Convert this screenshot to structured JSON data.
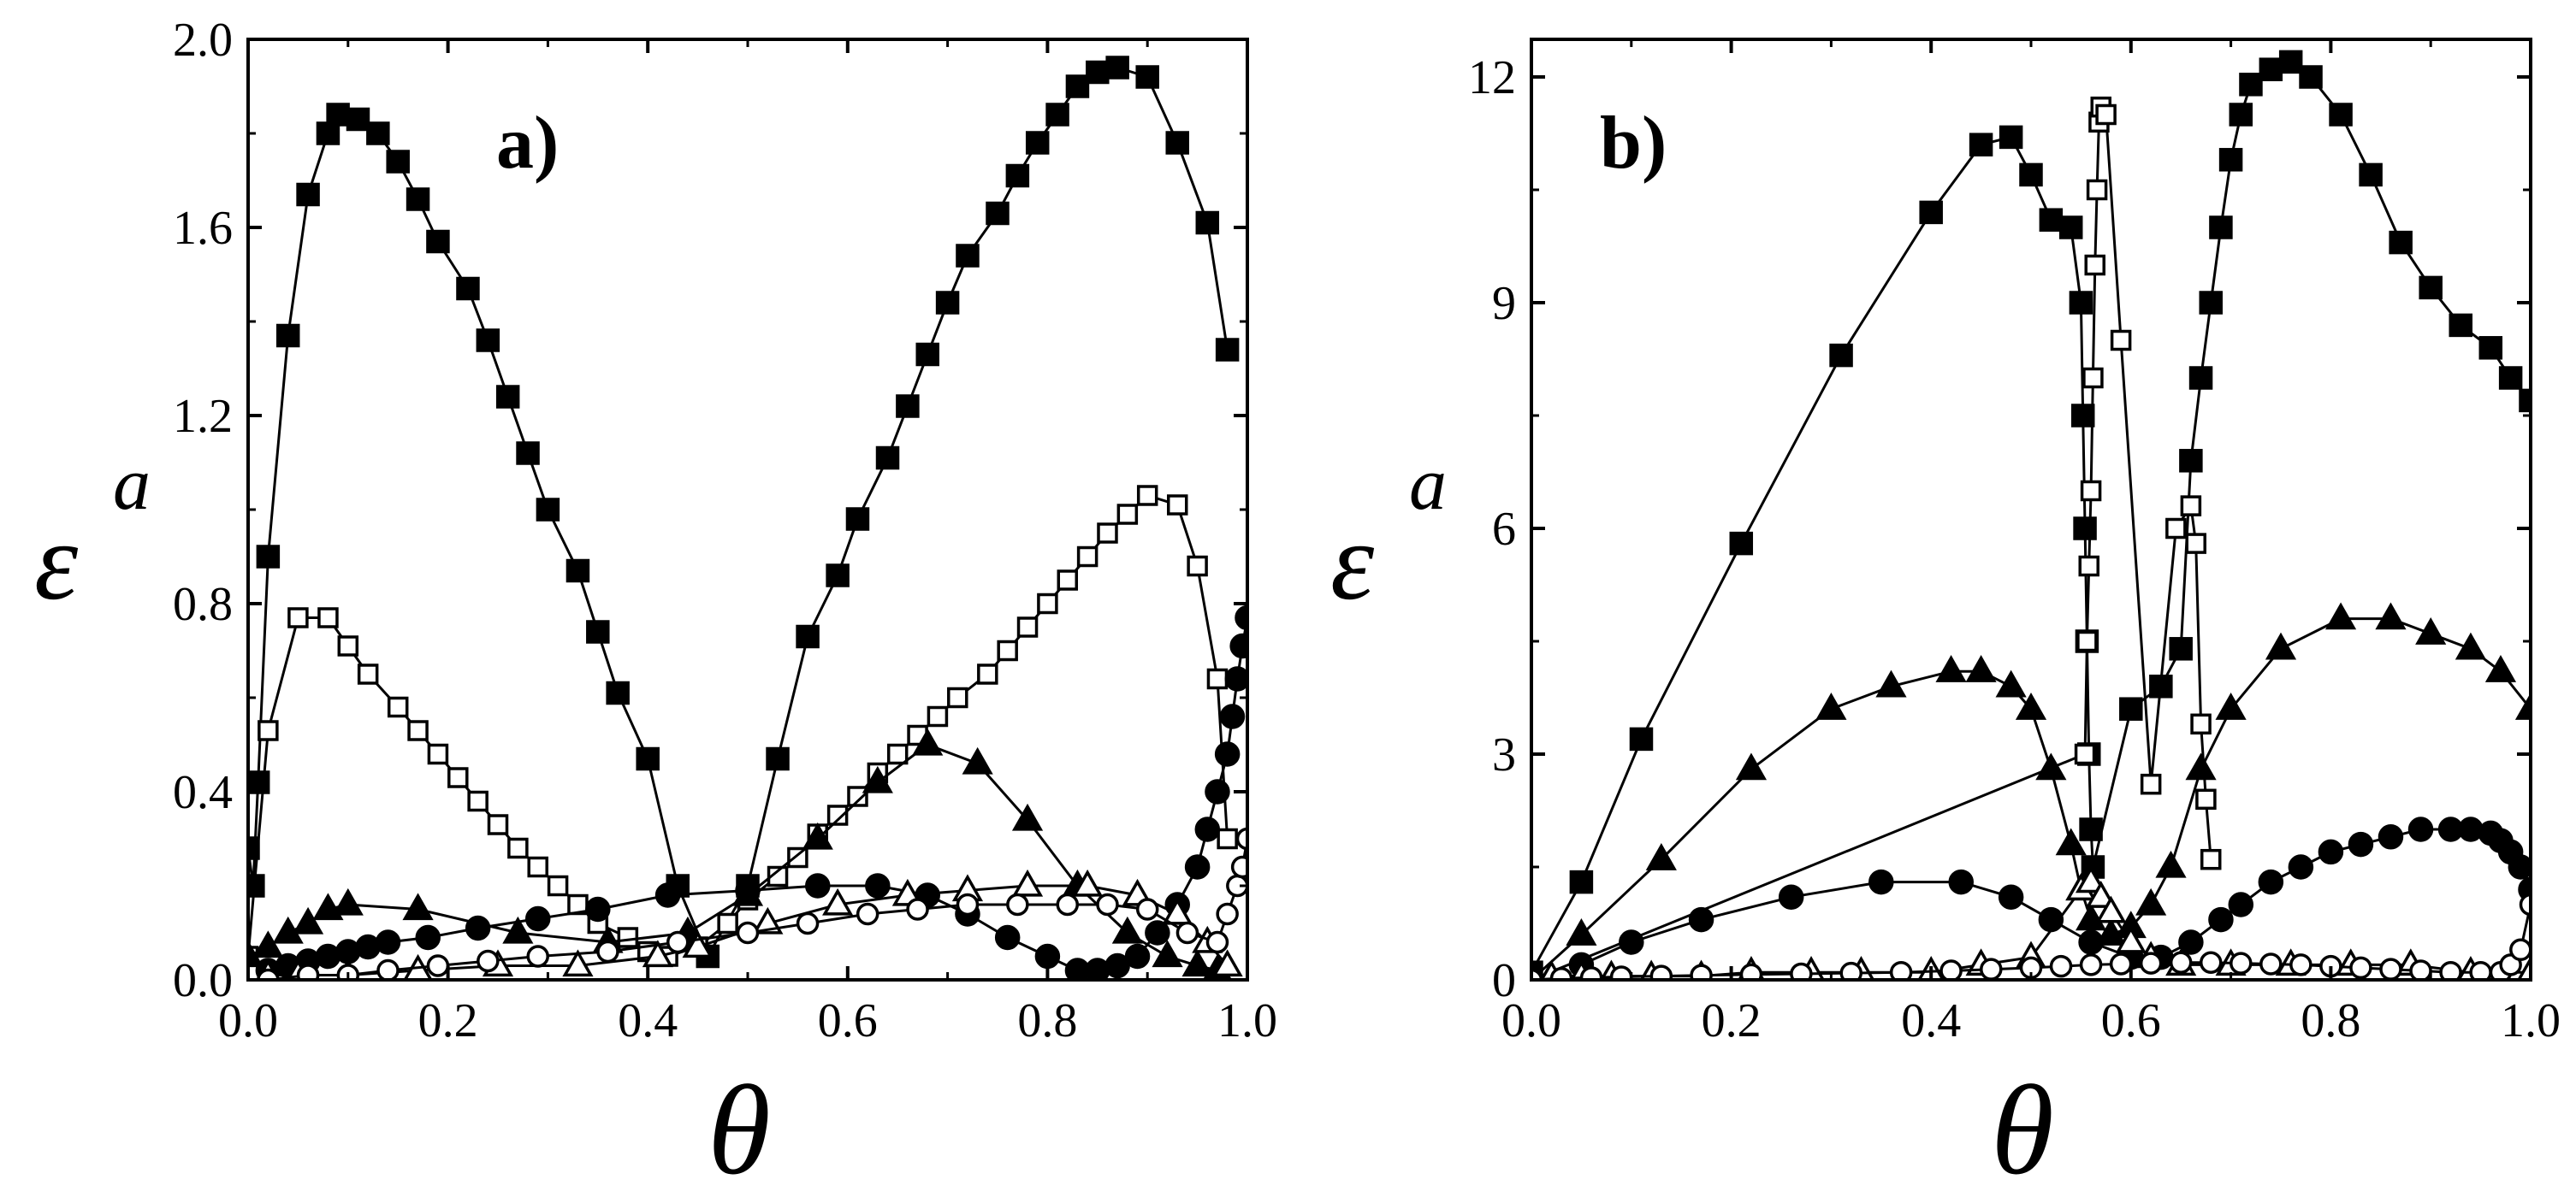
{
  "chart_data": [
    {
      "type": "line",
      "panel_label": "a)",
      "xlabel": "θ",
      "ylabel": "ε",
      "ylabel_superscript": "a",
      "xlim": [
        0.0,
        1.0
      ],
      "ylim": [
        0.0,
        2.0
      ],
      "xticks": [
        0.0,
        0.2,
        0.4,
        0.6,
        0.8,
        1.0
      ],
      "yticks": [
        0.0,
        0.4,
        0.8,
        1.2,
        1.6,
        2.0
      ],
      "xtick_labels": [
        "0.0",
        "0.2",
        "0.4",
        "0.6",
        "0.8",
        "1.0"
      ],
      "ytick_labels": [
        "0.0",
        "0.4",
        "0.8",
        "1.2",
        "1.6",
        "2.0"
      ],
      "series": [
        {
          "marker": "square",
          "filled": true,
          "x": [
            0.0,
            0.005,
            0.01,
            0.02,
            0.04,
            0.06,
            0.08,
            0.09,
            0.11,
            0.13,
            0.15,
            0.17,
            0.19,
            0.22,
            0.24,
            0.26,
            0.28,
            0.3,
            0.33,
            0.35,
            0.37,
            0.4,
            0.43,
            0.46,
            0.5,
            0.53,
            0.56,
            0.59,
            0.61,
            0.64,
            0.66,
            0.68,
            0.7,
            0.72,
            0.75,
            0.77,
            0.79,
            0.81,
            0.83,
            0.85,
            0.87,
            0.9,
            0.93,
            0.96,
            0.98
          ],
          "y": [
            0.28,
            0.2,
            0.42,
            0.9,
            1.37,
            1.67,
            1.8,
            1.84,
            1.83,
            1.8,
            1.74,
            1.66,
            1.57,
            1.47,
            1.36,
            1.24,
            1.12,
            1.0,
            0.87,
            0.74,
            0.61,
            0.47,
            0.2,
            0.05,
            0.2,
            0.47,
            0.73,
            0.86,
            0.98,
            1.11,
            1.22,
            1.33,
            1.44,
            1.54,
            1.63,
            1.71,
            1.78,
            1.84,
            1.9,
            1.93,
            1.94,
            1.92,
            1.78,
            1.61,
            1.34
          ]
        },
        {
          "marker": "square",
          "filled": false,
          "x": [
            0.0,
            0.02,
            0.05,
            0.08,
            0.1,
            0.12,
            0.15,
            0.17,
            0.19,
            0.21,
            0.23,
            0.25,
            0.27,
            0.29,
            0.31,
            0.33,
            0.35,
            0.38,
            0.4,
            0.42,
            0.45,
            0.48,
            0.5,
            0.53,
            0.55,
            0.57,
            0.59,
            0.61,
            0.63,
            0.65,
            0.67,
            0.69,
            0.71,
            0.74,
            0.76,
            0.78,
            0.8,
            0.82,
            0.84,
            0.86,
            0.88,
            0.9,
            0.93,
            0.95,
            0.97,
            0.98
          ],
          "y": [
            0.05,
            0.53,
            0.77,
            0.77,
            0.71,
            0.65,
            0.58,
            0.53,
            0.48,
            0.43,
            0.38,
            0.33,
            0.28,
            0.24,
            0.2,
            0.16,
            0.12,
            0.09,
            0.06,
            0.05,
            0.07,
            0.12,
            0.17,
            0.22,
            0.26,
            0.31,
            0.35,
            0.39,
            0.44,
            0.48,
            0.52,
            0.56,
            0.6,
            0.65,
            0.7,
            0.75,
            0.8,
            0.85,
            0.9,
            0.95,
            0.99,
            1.03,
            1.01,
            0.88,
            0.64,
            0.3
          ]
        },
        {
          "marker": "triangle",
          "filled": true,
          "x": [
            0.0,
            0.02,
            0.04,
            0.06,
            0.08,
            0.1,
            0.17,
            0.27,
            0.36,
            0.44,
            0.5,
            0.57,
            0.63,
            0.68,
            0.73,
            0.78,
            0.83,
            0.88,
            0.92,
            0.95,
            0.97
          ],
          "y": [
            0.05,
            0.07,
            0.1,
            0.12,
            0.15,
            0.16,
            0.15,
            0.1,
            0.08,
            0.1,
            0.18,
            0.3,
            0.42,
            0.5,
            0.46,
            0.34,
            0.2,
            0.1,
            0.05,
            0.03,
            0.02
          ]
        },
        {
          "marker": "circle",
          "filled": true,
          "x": [
            0.02,
            0.04,
            0.06,
            0.08,
            0.1,
            0.12,
            0.14,
            0.18,
            0.23,
            0.29,
            0.35,
            0.42,
            0.5,
            0.57,
            0.63,
            0.68,
            0.72,
            0.76,
            0.8,
            0.83,
            0.85,
            0.87,
            0.89,
            0.91,
            0.93,
            0.95,
            0.96,
            0.97,
            0.98,
            0.985,
            0.99,
            0.995,
            1.0
          ],
          "y": [
            0.02,
            0.03,
            0.04,
            0.05,
            0.06,
            0.07,
            0.08,
            0.09,
            0.11,
            0.13,
            0.15,
            0.18,
            0.19,
            0.2,
            0.2,
            0.18,
            0.14,
            0.09,
            0.05,
            0.02,
            0.02,
            0.03,
            0.05,
            0.1,
            0.16,
            0.24,
            0.32,
            0.4,
            0.48,
            0.56,
            0.64,
            0.71,
            0.77
          ]
        },
        {
          "marker": "triangle",
          "filled": false,
          "x": [
            0.02,
            0.05,
            0.1,
            0.17,
            0.25,
            0.33,
            0.41,
            0.45,
            0.52,
            0.59,
            0.66,
            0.72,
            0.78,
            0.84,
            0.89,
            0.93,
            0.96,
            0.98
          ],
          "y": [
            0.01,
            0.01,
            0.01,
            0.02,
            0.03,
            0.03,
            0.05,
            0.07,
            0.12,
            0.16,
            0.18,
            0.19,
            0.2,
            0.2,
            0.18,
            0.14,
            0.08,
            0.03
          ]
        },
        {
          "marker": "circle",
          "filled": false,
          "x": [
            0.02,
            0.06,
            0.1,
            0.14,
            0.19,
            0.24,
            0.29,
            0.36,
            0.43,
            0.5,
            0.56,
            0.62,
            0.67,
            0.72,
            0.77,
            0.82,
            0.86,
            0.9,
            0.94,
            0.97,
            0.98,
            0.99,
            0.995,
            1.0
          ],
          "y": [
            0.0,
            0.01,
            0.01,
            0.02,
            0.03,
            0.04,
            0.05,
            0.06,
            0.08,
            0.1,
            0.12,
            0.14,
            0.15,
            0.16,
            0.16,
            0.16,
            0.16,
            0.15,
            0.1,
            0.08,
            0.14,
            0.2,
            0.24,
            0.3
          ]
        }
      ]
    },
    {
      "type": "line",
      "panel_label": "b)",
      "xlabel": "θ",
      "ylabel": "ε",
      "ylabel_superscript": "a",
      "xlim": [
        0.0,
        1.0
      ],
      "ylim": [
        0,
        12.5
      ],
      "xticks": [
        0.0,
        0.2,
        0.4,
        0.6,
        0.8,
        1.0
      ],
      "yticks": [
        0,
        3,
        6,
        9,
        12
      ],
      "xtick_labels": [
        "0.0",
        "0.2",
        "0.4",
        "0.6",
        "0.8",
        "1.0"
      ],
      "ytick_labels": [
        "0",
        "3",
        "6",
        "9",
        "12"
      ],
      "series": [
        {
          "marker": "square",
          "filled": true,
          "x": [
            0.0,
            0.05,
            0.11,
            0.21,
            0.31,
            0.4,
            0.45,
            0.48,
            0.5,
            0.52,
            0.54,
            0.55,
            0.552,
            0.554,
            0.556,
            0.558,
            0.56,
            0.562,
            0.6,
            0.63,
            0.65,
            0.66,
            0.67,
            0.68,
            0.69,
            0.7,
            0.71,
            0.72,
            0.74,
            0.76,
            0.78,
            0.81,
            0.84,
            0.87,
            0.9,
            0.93,
            0.96,
            0.98,
            1.0
          ],
          "y": [
            0.1,
            1.3,
            3.2,
            5.8,
            8.3,
            10.2,
            11.1,
            11.2,
            10.7,
            10.1,
            10.0,
            9.0,
            7.5,
            6.0,
            4.5,
            3.0,
            2.0,
            1.5,
            3.6,
            3.9,
            4.4,
            6.9,
            8.0,
            9.0,
            10.0,
            10.9,
            11.5,
            11.9,
            12.1,
            12.2,
            12.0,
            11.5,
            10.7,
            9.8,
            9.2,
            8.7,
            8.4,
            8.0,
            7.7
          ]
        },
        {
          "marker": "square",
          "filled": false,
          "x": [
            0.0,
            0.554,
            0.556,
            0.558,
            0.56,
            0.562,
            0.564,
            0.566,
            0.568,
            0.57,
            0.575,
            0.59,
            0.62,
            0.645,
            0.66,
            0.665,
            0.67,
            0.675,
            0.68
          ],
          "y": [
            0.0,
            3.0,
            4.5,
            5.5,
            6.5,
            8.0,
            9.5,
            10.5,
            11.4,
            11.6,
            11.5,
            8.5,
            2.6,
            6.0,
            6.3,
            5.8,
            3.4,
            2.4,
            1.6
          ]
        },
        {
          "marker": "triangle",
          "filled": true,
          "x": [
            0.0,
            0.05,
            0.13,
            0.22,
            0.3,
            0.36,
            0.42,
            0.45,
            0.48,
            0.5,
            0.52,
            0.54,
            0.55,
            0.56,
            0.58,
            0.6,
            0.62,
            0.64,
            0.67,
            0.7,
            0.75,
            0.81,
            0.86,
            0.9,
            0.94,
            0.97,
            1.0
          ],
          "y": [
            0.0,
            0.6,
            1.6,
            2.8,
            3.6,
            3.9,
            4.1,
            4.1,
            3.9,
            3.6,
            2.8,
            1.8,
            1.2,
            0.8,
            0.6,
            0.7,
            1.0,
            1.5,
            2.8,
            3.6,
            4.4,
            4.8,
            4.8,
            4.6,
            4.4,
            4.1,
            3.6
          ]
        },
        {
          "marker": "circle",
          "filled": true,
          "x": [
            0.05,
            0.1,
            0.17,
            0.26,
            0.35,
            0.43,
            0.48,
            0.52,
            0.56,
            0.6,
            0.63,
            0.66,
            0.69,
            0.71,
            0.74,
            0.77,
            0.8,
            0.83,
            0.86,
            0.89,
            0.92,
            0.94,
            0.96,
            0.97,
            0.98,
            0.99,
            1.0
          ],
          "y": [
            0.2,
            0.5,
            0.8,
            1.1,
            1.3,
            1.3,
            1.1,
            0.8,
            0.5,
            0.3,
            0.3,
            0.5,
            0.8,
            1.0,
            1.3,
            1.5,
            1.7,
            1.8,
            1.9,
            2.0,
            2.0,
            2.0,
            1.95,
            1.85,
            1.7,
            1.5,
            1.2
          ]
        },
        {
          "marker": "triangle",
          "filled": false,
          "x": [
            0.02,
            0.05,
            0.08,
            0.12,
            0.17,
            0.22,
            0.28,
            0.33,
            0.4,
            0.45,
            0.5,
            0.55,
            0.56,
            0.57,
            0.58,
            0.6,
            0.62,
            0.65,
            0.7,
            0.76,
            0.82,
            0.88,
            0.94,
            1.0
          ],
          "y": [
            0.05,
            0.05,
            0.05,
            0.05,
            0.05,
            0.1,
            0.1,
            0.1,
            0.1,
            0.2,
            0.3,
            1.2,
            1.3,
            1.1,
            0.9,
            0.5,
            0.3,
            0.2,
            0.2,
            0.2,
            0.2,
            0.2,
            0.1,
            0.1
          ]
        },
        {
          "marker": "circle",
          "filled": false,
          "x": [
            0.0,
            0.03,
            0.06,
            0.09,
            0.13,
            0.17,
            0.22,
            0.27,
            0.32,
            0.37,
            0.42,
            0.46,
            0.5,
            0.53,
            0.56,
            0.59,
            0.62,
            0.65,
            0.68,
            0.71,
            0.74,
            0.77,
            0.8,
            0.83,
            0.86,
            0.89,
            0.92,
            0.95,
            0.97,
            0.98,
            0.99,
            1.0
          ],
          "y": [
            0.0,
            0.02,
            0.03,
            0.04,
            0.05,
            0.06,
            0.07,
            0.08,
            0.09,
            0.1,
            0.12,
            0.14,
            0.16,
            0.18,
            0.2,
            0.21,
            0.22,
            0.23,
            0.23,
            0.22,
            0.21,
            0.2,
            0.18,
            0.16,
            0.14,
            0.12,
            0.1,
            0.1,
            0.1,
            0.2,
            0.4,
            1.0
          ]
        }
      ]
    }
  ]
}
